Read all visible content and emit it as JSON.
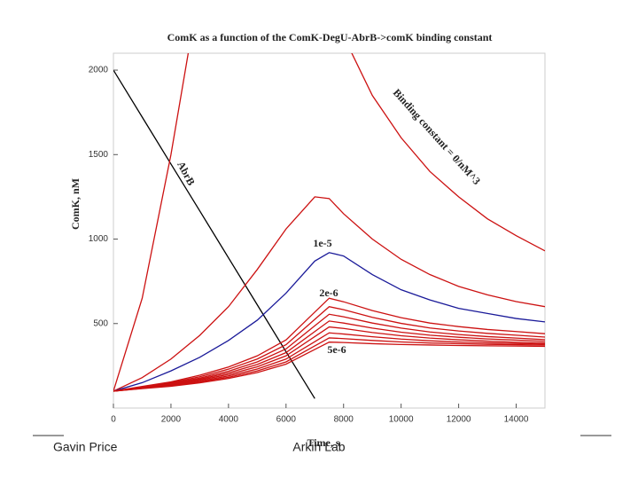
{
  "chart_data": {
    "type": "line",
    "title": "ComK as a function of the ComK-DegU-AbrB->comK binding constant",
    "x_label": "Time, s",
    "y_label": "ComK, nM",
    "x": [
      0,
      1000,
      2000,
      3000,
      4000,
      5000,
      6000,
      7000,
      7500,
      8000,
      9000,
      10000,
      11000,
      12000,
      13000,
      14000,
      15000
    ],
    "xlim": [
      0,
      15000
    ],
    "xticks": [
      0,
      2000,
      4000,
      6000,
      8000,
      10000,
      12000,
      14000
    ],
    "ylim": [
      0,
      2100
    ],
    "yticks": [
      500,
      1000,
      1500,
      2000
    ],
    "series": [
      {
        "color": "#000000",
        "values": [
          2000,
          1722,
          1444,
          1167,
          889,
          611,
          333,
          56,
          null,
          null,
          null,
          null,
          null,
          null,
          null,
          null,
          null
        ]
      },
      {
        "color": "#cc1111",
        "values": [
          100,
          650,
          1500,
          2500,
          null,
          null,
          null,
          null,
          null,
          2200,
          1850,
          1600,
          1400,
          1250,
          1120,
          1020,
          930
        ]
      },
      {
        "color": "#cc1111",
        "values": [
          100,
          180,
          290,
          430,
          600,
          820,
          1060,
          1250,
          1240,
          1150,
          1000,
          880,
          790,
          720,
          670,
          630,
          600
        ]
      },
      {
        "color": "#1a1a99",
        "values": [
          100,
          150,
          220,
          300,
          400,
          520,
          680,
          870,
          920,
          900,
          790,
          700,
          640,
          590,
          560,
          530,
          510
        ]
      },
      {
        "color": "#cc1111",
        "values": [
          100,
          128,
          155,
          194,
          243,
          309,
          403,
          568,
          650,
          629,
          577,
          535,
          503,
          482,
          465,
          453,
          440
        ]
      },
      {
        "color": "#cc1111",
        "values": [
          100,
          125,
          150,
          185,
          230,
          290,
          375,
          525,
          600,
          582,
          537,
          501,
          474,
          456,
          442,
          431,
          420
        ]
      },
      {
        "color": "#cc1111",
        "values": [
          100,
          123,
          146,
          177,
          218,
          273,
          350,
          487,
          555,
          540,
          503,
          473,
          450,
          435,
          423,
          414,
          405
        ]
      },
      {
        "color": "#cc1111",
        "values": [
          100,
          121,
          142,
          171,
          208,
          258,
          328,
          453,
          515,
          503,
          473,
          449,
          431,
          419,
          409,
          402,
          395
        ]
      },
      {
        "color": "#cc1111",
        "values": [
          100,
          119,
          138,
          165,
          199,
          244,
          309,
          423,
          480,
          471,
          447,
          428,
          414,
          404,
          396,
          389,
          385
        ]
      },
      {
        "color": "#cc1111",
        "values": [
          100,
          117,
          135,
          159,
          190,
          231,
          290,
          393,
          445,
          438,
          422,
          408,
          398,
          391,
          386,
          382,
          378
        ]
      },
      {
        "color": "#cc1111",
        "values": [
          100,
          116,
          132,
          154,
          182,
          220,
          273,
          368,
          415,
          411,
          400,
          391,
          385,
          381,
          377,
          375,
          372
        ]
      },
      {
        "color": "#cc1111",
        "values": [
          100,
          115,
          129,
          149,
          175,
          210,
          260,
          347,
          390,
          388,
          381,
          376,
          373,
          370,
          368,
          367,
          365
        ]
      }
    ],
    "annotations": [
      "AbrB",
      "Binding constant = 0/nM^3",
      "1e-5",
      "2e-6",
      "5e-6"
    ]
  },
  "footer": {
    "author": "Gavin Price",
    "lab": "Arkin Lab"
  }
}
